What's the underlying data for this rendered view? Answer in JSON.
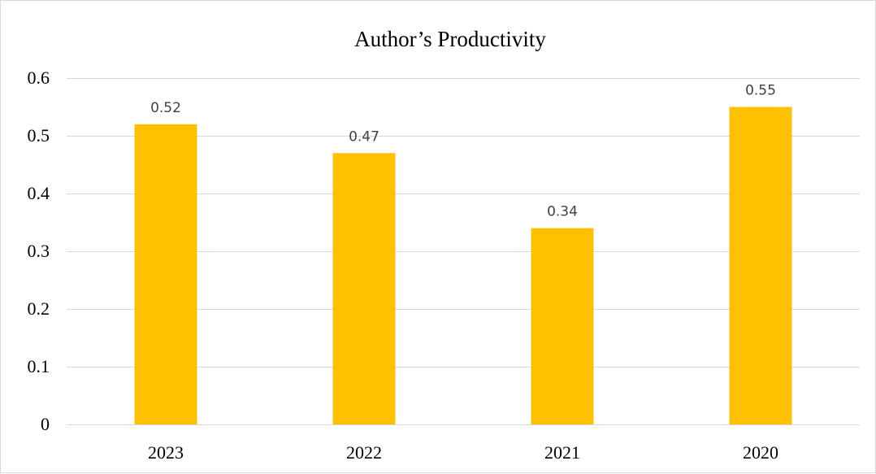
{
  "chart_data": {
    "type": "bar",
    "title": "Author’s Productivity",
    "categories": [
      "2023",
      "2022",
      "2021",
      "2020"
    ],
    "values": [
      0.52,
      0.47,
      0.34,
      0.55
    ],
    "data_labels": [
      "0.52",
      "0.47",
      "0.34",
      "0.55"
    ],
    "ylim": [
      0,
      0.6
    ],
    "yticks": [
      0,
      0.1,
      0.2,
      0.3,
      0.4,
      0.5,
      0.6
    ],
    "ytick_labels": [
      "0",
      "0.1",
      "0.2",
      "0.3",
      "0.4",
      "0.5",
      "0.6"
    ],
    "xlabel": "",
    "ylabel": "",
    "grid": true,
    "legend": false,
    "bar_color": "#FFC000",
    "grid_color": "#d9d9d9"
  }
}
